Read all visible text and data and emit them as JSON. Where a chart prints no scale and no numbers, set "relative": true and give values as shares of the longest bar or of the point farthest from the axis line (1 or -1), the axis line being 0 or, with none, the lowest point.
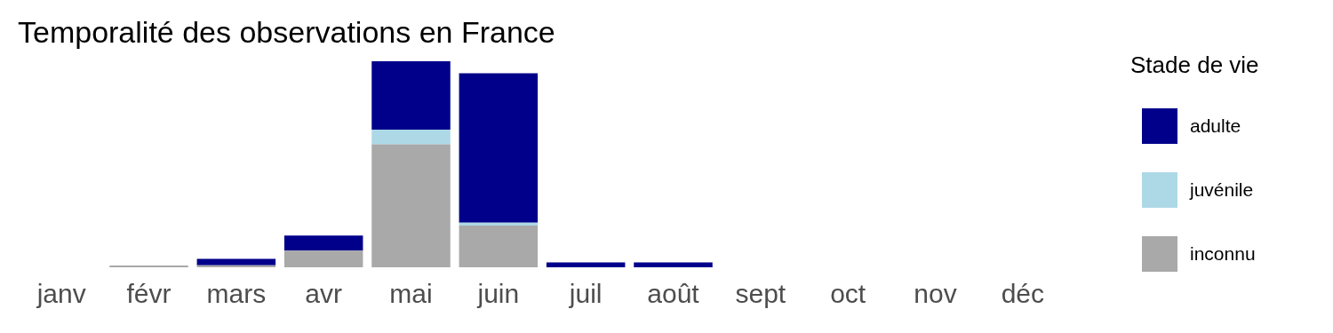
{
  "chart_data": {
    "type": "bar",
    "title": "Temporalité des observations en France",
    "legend_title": "Stade de vie",
    "categories": [
      "janv",
      "févr",
      "mars",
      "avr",
      "mai",
      "juin",
      "juil",
      "août",
      "sept",
      "oct",
      "nov",
      "déc"
    ],
    "relative": true,
    "stacked": true,
    "legend": "right",
    "grid": false,
    "series": [
      {
        "name": "inconnu",
        "color": "#a9a9a9",
        "values": [
          0,
          0.009,
          0.01,
          0.081,
          0.596,
          0.202,
          0,
          0,
          0,
          0,
          0,
          0
        ]
      },
      {
        "name": "juvénile",
        "color": "#add8e6",
        "values": [
          0,
          0,
          0,
          0,
          0.072,
          0.014,
          0,
          0,
          0,
          0,
          0,
          0
        ]
      },
      {
        "name": "adulte",
        "color": "#00008b",
        "values": [
          0,
          0,
          0.031,
          0.073,
          0.332,
          0.725,
          0.024,
          0.024,
          0,
          0,
          0,
          0
        ]
      }
    ]
  }
}
